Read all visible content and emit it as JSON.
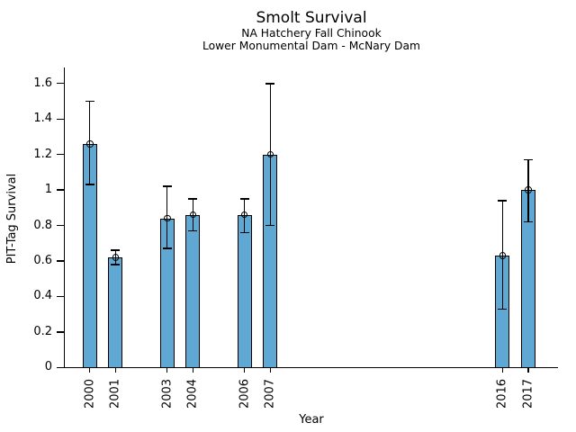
{
  "chart_data": {
    "type": "bar",
    "title": "Smolt Survival",
    "subtitle": [
      "NA Hatchery Fall Chinook",
      "Lower Monumental Dam - McNary Dam"
    ],
    "xlabel": "Year",
    "ylabel": "PIT-Tag Survival",
    "categories": [
      2000,
      2001,
      2003,
      2004,
      2006,
      2007,
      2016,
      2017
    ],
    "values": [
      1.26,
      0.62,
      0.84,
      0.86,
      0.86,
      1.2,
      0.63,
      1.0
    ],
    "error_low": [
      1.03,
      0.58,
      0.67,
      0.77,
      0.76,
      0.8,
      0.33,
      0.82
    ],
    "error_high": [
      1.5,
      0.66,
      1.02,
      0.95,
      0.95,
      1.6,
      0.94,
      1.17
    ],
    "ytick_values": [
      0,
      0.2,
      0.4,
      0.6,
      0.8,
      1,
      1.2,
      1.4,
      1.6
    ],
    "ytick_labels": [
      "0",
      "0.2",
      "0.4",
      "0.6",
      "0.8",
      "1",
      "1.2",
      "1.4",
      "1.6"
    ],
    "ylim": [
      0,
      1.69
    ],
    "xlim": [
      1999.0,
      2018.15
    ],
    "grid": false,
    "legend": null,
    "bar_color": "#5FA8D3",
    "bar_edge_color": "#000000",
    "error_color": "#000000"
  }
}
